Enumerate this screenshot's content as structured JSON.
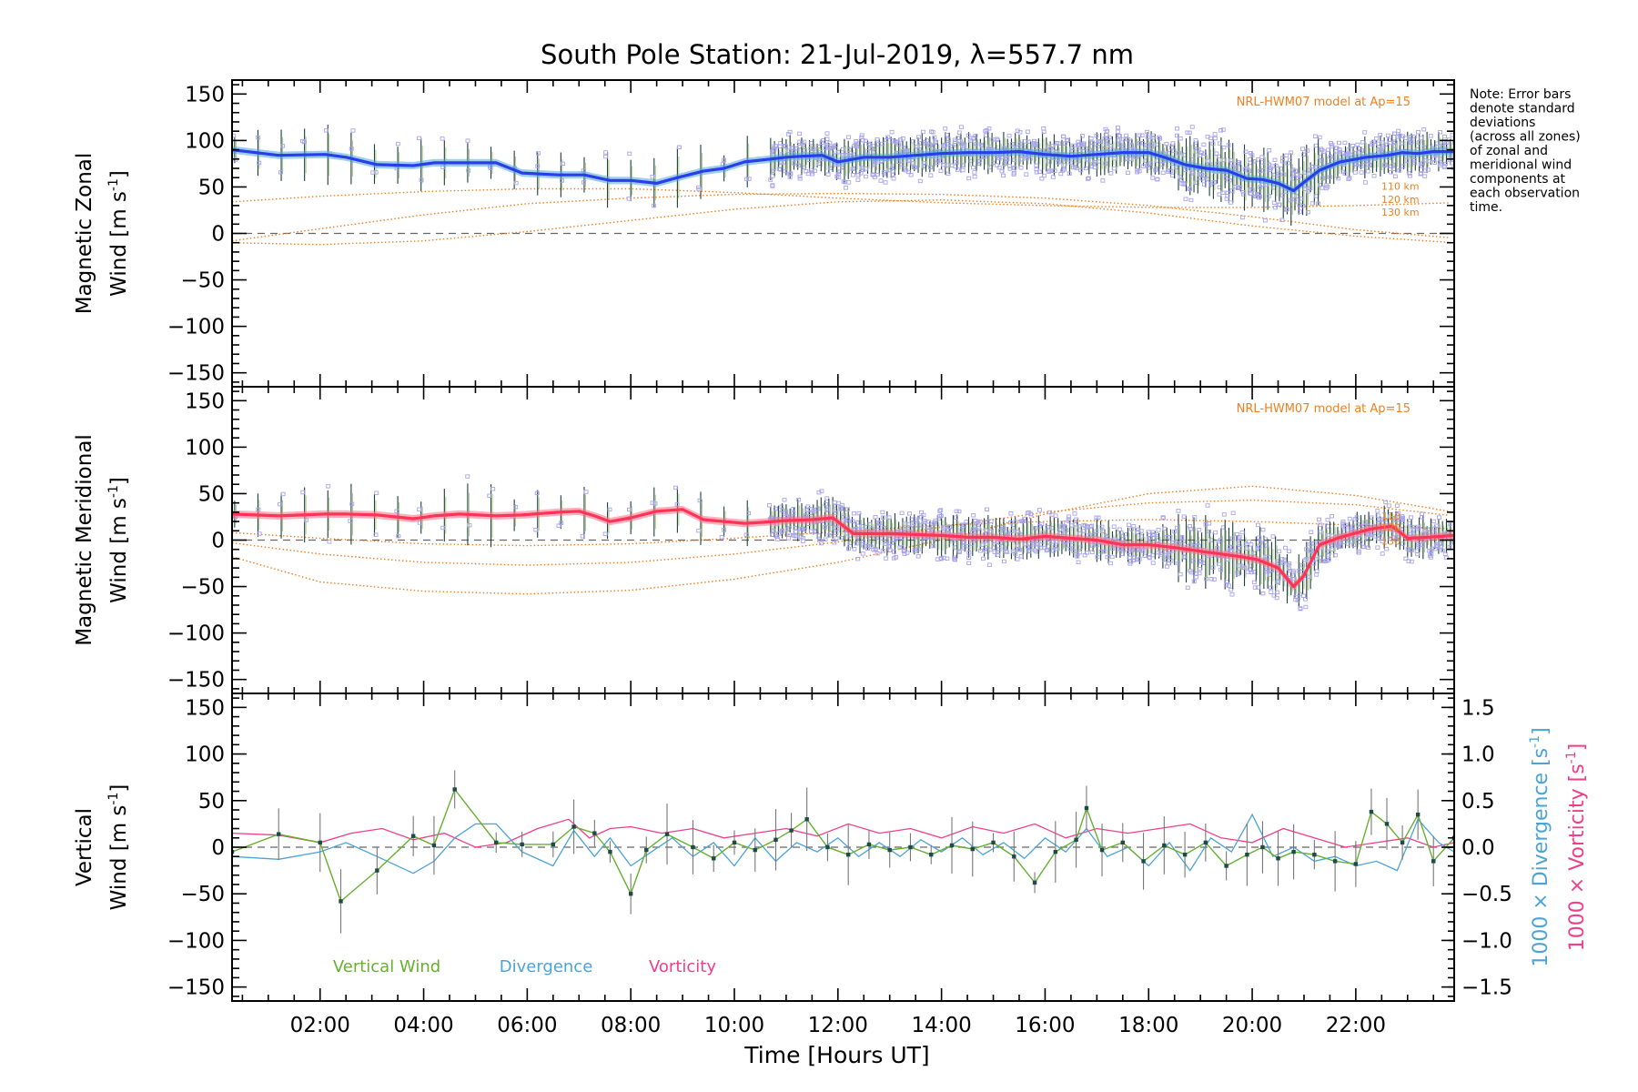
{
  "chart_data": {
    "type": "line",
    "title": "South Pole Station: 21-Jul-2019, λ=557.7 nm",
    "xlabel": "Time [Hours UT]",
    "xlim": [
      0.3,
      23.9
    ],
    "x_ticks": [
      2,
      4,
      6,
      8,
      10,
      12,
      14,
      16,
      18,
      20,
      22
    ],
    "x_tick_labels": [
      "02:00",
      "04:00",
      "06:00",
      "08:00",
      "10:00",
      "12:00",
      "14:00",
      "16:00",
      "18:00",
      "20:00",
      "22:00"
    ],
    "y_ticks": [
      -150,
      -100,
      -50,
      0,
      50,
      100,
      150
    ],
    "y_tick_labels": [
      "−150",
      "−100",
      "−50",
      "0",
      "50",
      "100",
      "150"
    ],
    "ylim": [
      -165,
      165
    ],
    "note": [
      "Note: Error bars",
      "denote standard",
      "deviations",
      "(across all zones)",
      "of zonal and",
      "meridional wind",
      "components at",
      "each observation",
      "time."
    ],
    "colors": {
      "zonal": "#2a3de8",
      "zonal_light": "#4aa8e0",
      "meridional": "#ff3355",
      "meridional_light": "#ff6f8a",
      "model": "#f07f1f",
      "vertical": "#66b030",
      "divergence": "#4ca3d6",
      "vorticity": "#ee3f8a",
      "errorbar": "#1f3d3d",
      "scatter": "#a8a4ec"
    },
    "panels": [
      {
        "name": "zonal",
        "ylabel_line1": "Magnetic Zonal",
        "ylabel_line2": "Wind [m s",
        "ylabel_sup": "-1",
        "ylabel_close": "]",
        "model_label": "NRL-HWM07 model at Ap=15",
        "model_altitudes": [
          "110 km",
          "120 km",
          "130 km"
        ],
        "series": [
          {
            "name": "Magnetic Zonal Wind",
            "x": [
              0.3,
              1.2,
              2.1,
              2.5,
              3.1,
              3.8,
              4.2,
              4.7,
              5.4,
              5.9,
              6.6,
              7.1,
              7.6,
              8.0,
              8.5,
              8.9,
              9.4,
              9.8,
              10.2,
              10.7,
              11.0,
              11.3,
              11.7,
              12.0,
              12.5,
              13.0,
              13.5,
              14.0,
              14.5,
              15.0,
              15.5,
              16.0,
              16.5,
              17.0,
              17.5,
              18.0,
              18.3,
              18.7,
              19.1,
              19.5,
              19.9,
              20.2,
              20.5,
              20.8,
              21.0,
              21.3,
              21.7,
              22.2,
              22.6,
              22.9,
              23.2,
              23.5,
              23.9
            ],
            "y": [
              90,
              84,
              85,
              82,
              74,
              73,
              76,
              76,
              76,
              65,
              63,
              63,
              57,
              57,
              54,
              60,
              67,
              70,
              77,
              80,
              82,
              83,
              84,
              77,
              82,
              82,
              84,
              86,
              87,
              87,
              88,
              85,
              83,
              85,
              87,
              87,
              82,
              74,
              70,
              68,
              59,
              58,
              54,
              46,
              55,
              68,
              77,
              82,
              84,
              87,
              86,
              88,
              88
            ]
          },
          {
            "name": "Model 110 km",
            "x": [
              0.3,
              2,
              4,
              6,
              8,
              10,
              12,
              14,
              16,
              18,
              20,
              22,
              23.9
            ],
            "y": [
              34,
              40,
              45,
              48,
              48,
              44,
              38,
              33,
              30,
              28,
              28,
              30,
              33
            ]
          },
          {
            "name": "Model 120 km",
            "x": [
              0.3,
              2,
              4,
              6,
              8,
              10,
              12,
              14,
              16,
              18,
              20,
              22,
              23.9
            ],
            "y": [
              -8,
              5,
              20,
              32,
              38,
              42,
              43,
              42,
              38,
              30,
              18,
              4,
              -5
            ]
          },
          {
            "name": "Model 130 km",
            "x": [
              0.3,
              2,
              4,
              6,
              8,
              10,
              12,
              14,
              16,
              18,
              20,
              22,
              23.9
            ],
            "y": [
              -10,
              -12,
              -8,
              2,
              14,
              26,
              34,
              36,
              32,
              22,
              8,
              -3,
              -10
            ]
          }
        ]
      },
      {
        "name": "meridional",
        "ylabel_line1": "Magnetic Meridional",
        "ylabel_line2": "Wind [m s",
        "ylabel_sup": "-1",
        "ylabel_close": "]",
        "model_label": "NRL-HWM07 model at Ap=15",
        "model_altitudes": [
          "110",
          "120",
          "130"
        ],
        "series": [
          {
            "name": "Magnetic Meridional Wind",
            "x": [
              0.3,
              1.2,
              2.1,
              2.5,
              3.1,
              3.8,
              4.2,
              4.7,
              5.4,
              5.9,
              6.6,
              7.0,
              7.3,
              7.6,
              8.0,
              8.5,
              9.0,
              9.4,
              9.8,
              10.2,
              10.5,
              11.0,
              11.5,
              11.9,
              12.3,
              13.0,
              13.5,
              14.0,
              14.5,
              15.0,
              15.5,
              16.0,
              16.5,
              17.0,
              17.5,
              18.0,
              18.5,
              19.0,
              19.4,
              19.8,
              20.1,
              20.5,
              20.8,
              21.0,
              21.3,
              21.7,
              22.3,
              22.7,
              23.0,
              23.4,
              23.9
            ],
            "y": [
              28,
              26,
              28,
              28,
              27,
              23,
              26,
              28,
              26,
              27,
              30,
              31,
              26,
              20,
              24,
              31,
              33,
              22,
              20,
              18,
              19,
              21,
              22,
              24,
              7,
              7,
              6,
              5,
              3,
              3,
              1,
              4,
              2,
              0,
              -5,
              -5,
              -8,
              -12,
              -15,
              -18,
              -21,
              -30,
              -50,
              -38,
              -5,
              3,
              12,
              15,
              2,
              3,
              5
            ]
          },
          {
            "name": "Model 110 km",
            "x": [
              0.3,
              2,
              4,
              6,
              8,
              10,
              12,
              14,
              16,
              18,
              20,
              22,
              23.9
            ],
            "y": [
              -18,
              -45,
              -55,
              -58,
              -54,
              -42,
              -24,
              0,
              28,
              50,
              58,
              48,
              30
            ]
          },
          {
            "name": "Model 120 km",
            "x": [
              0.3,
              2,
              4,
              6,
              8,
              10,
              12,
              14,
              16,
              18,
              20,
              22,
              23.9
            ],
            "y": [
              -3,
              -15,
              -24,
              -27,
              -24,
              -15,
              -2,
              14,
              30,
              40,
              43,
              38,
              26
            ]
          },
          {
            "name": "Model 130 km",
            "x": [
              0.3,
              2,
              4,
              6,
              8,
              10,
              12,
              14,
              16,
              18,
              20,
              22,
              23.9
            ],
            "y": [
              8,
              2,
              -4,
              -6,
              -4,
              2,
              9,
              16,
              20,
              22,
              20,
              16,
              12
            ]
          }
        ]
      },
      {
        "name": "vertical",
        "ylabel_line1": "Vertical",
        "ylabel_line2": "Wind [m s",
        "ylabel_sup": "-1",
        "ylabel_close": "]",
        "right_ylim": [
          -1.65,
          1.65
        ],
        "right_ticks": [
          -1.5,
          -1.0,
          -0.5,
          0.0,
          0.5,
          1.0,
          1.5
        ],
        "right_tick_labels": [
          "−1.5",
          "−1.0",
          "−0.5",
          "0.0",
          "0.5",
          "1.0",
          "1.5"
        ],
        "right_label_div": "1000 × Divergence [s",
        "right_label_vor": "1000 × Vorticity [s",
        "right_label_sup": "-1",
        "right_label_close": "]",
        "legend": [
          "Vertical Wind",
          "Divergence",
          "Vorticity"
        ],
        "series": [
          {
            "name": "Vertical Wind",
            "x": [
              0.3,
              1.2,
              2.0,
              2.4,
              3.1,
              3.8,
              4.2,
              4.6,
              5.4,
              5.9,
              6.5,
              6.9,
              7.3,
              7.6,
              8.0,
              8.3,
              8.7,
              9.2,
              9.6,
              10.0,
              10.4,
              10.8,
              11.1,
              11.4,
              11.8,
              12.2,
              12.6,
              13.0,
              13.4,
              13.8,
              14.2,
              14.6,
              15.0,
              15.4,
              15.8,
              16.2,
              16.6,
              16.8,
              17.1,
              17.5,
              17.9,
              18.3,
              18.7,
              19.1,
              19.5,
              19.9,
              20.2,
              20.5,
              20.8,
              21.2,
              21.6,
              22.0,
              22.3,
              22.6,
              22.9,
              23.2,
              23.5,
              23.9
            ],
            "y": [
              -5,
              14,
              5,
              -58,
              -25,
              12,
              2,
              62,
              5,
              3,
              3,
              22,
              15,
              -5,
              -50,
              -3,
              14,
              0,
              -12,
              5,
              -3,
              8,
              18,
              30,
              0,
              -8,
              3,
              -3,
              0,
              -8,
              2,
              -2,
              5,
              -10,
              -38,
              -5,
              8,
              42,
              -3,
              5,
              -15,
              2,
              -8,
              5,
              -20,
              -8,
              0,
              -12,
              -5,
              -8,
              -15,
              -18,
              38,
              25,
              5,
              35,
              -15,
              10
            ]
          },
          {
            "name": "Divergence",
            "x": [
              0.3,
              1.2,
              2.0,
              2.5,
              3.1,
              3.8,
              4.2,
              4.6,
              5.0,
              5.4,
              5.9,
              6.5,
              6.9,
              7.3,
              7.6,
              8.0,
              8.4,
              8.8,
              9.2,
              9.6,
              10.0,
              10.4,
              10.8,
              11.2,
              11.6,
              12.0,
              12.4,
              12.8,
              13.2,
              13.6,
              14.0,
              14.4,
              14.8,
              15.2,
              15.6,
              16.0,
              16.4,
              16.8,
              17.2,
              17.6,
              18.0,
              18.4,
              18.8,
              19.2,
              19.6,
              20.0,
              20.4,
              20.8,
              21.2,
              21.6,
              22.0,
              22.4,
              22.8,
              23.2,
              23.6,
              23.9
            ],
            "y": [
              -0.1,
              -0.13,
              -0.05,
              0.05,
              -0.1,
              -0.28,
              -0.15,
              0.1,
              0.25,
              0.25,
              -0.05,
              -0.2,
              0.18,
              -0.1,
              0.1,
              -0.2,
              -0.05,
              0.1,
              -0.1,
              0.05,
              -0.2,
              0.1,
              -0.15,
              0.05,
              -0.05,
              0.1,
              -0.1,
              0.05,
              -0.1,
              0.08,
              -0.05,
              0.1,
              -0.08,
              0.05,
              -0.12,
              0.1,
              -0.05,
              0.2,
              -0.1,
              0.0,
              -0.2,
              0.05,
              -0.25,
              0.1,
              -0.05,
              0.35,
              -0.1,
              0.0,
              -0.15,
              -0.1,
              -0.2,
              -0.15,
              -0.25,
              0.3,
              0.05,
              -0.05
            ]
          },
          {
            "name": "Vorticity",
            "x": [
              0.3,
              1.2,
              2.0,
              2.6,
              3.2,
              3.8,
              4.4,
              5.0,
              5.6,
              6.2,
              6.8,
              7.2,
              7.6,
              8.0,
              8.6,
              9.2,
              9.8,
              10.4,
              11.0,
              11.6,
              12.2,
              12.8,
              13.4,
              14.0,
              14.6,
              15.2,
              15.8,
              16.4,
              17.0,
              17.6,
              18.2,
              18.8,
              19.4,
              20.0,
              20.6,
              21.2,
              21.8,
              22.4,
              23.0,
              23.5,
              23.9
            ],
            "y": [
              0.15,
              0.13,
              0.05,
              0.15,
              0.2,
              0.08,
              0.15,
              0.0,
              0.05,
              0.2,
              0.3,
              0.1,
              0.2,
              0.22,
              0.15,
              0.2,
              0.1,
              0.15,
              0.2,
              0.12,
              0.25,
              0.15,
              0.2,
              0.1,
              0.22,
              0.15,
              0.25,
              0.1,
              0.2,
              0.15,
              0.2,
              0.25,
              0.1,
              0.05,
              0.2,
              0.1,
              0.0,
              0.05,
              0.1,
              0.0,
              0.05
            ]
          }
        ]
      }
    ]
  }
}
